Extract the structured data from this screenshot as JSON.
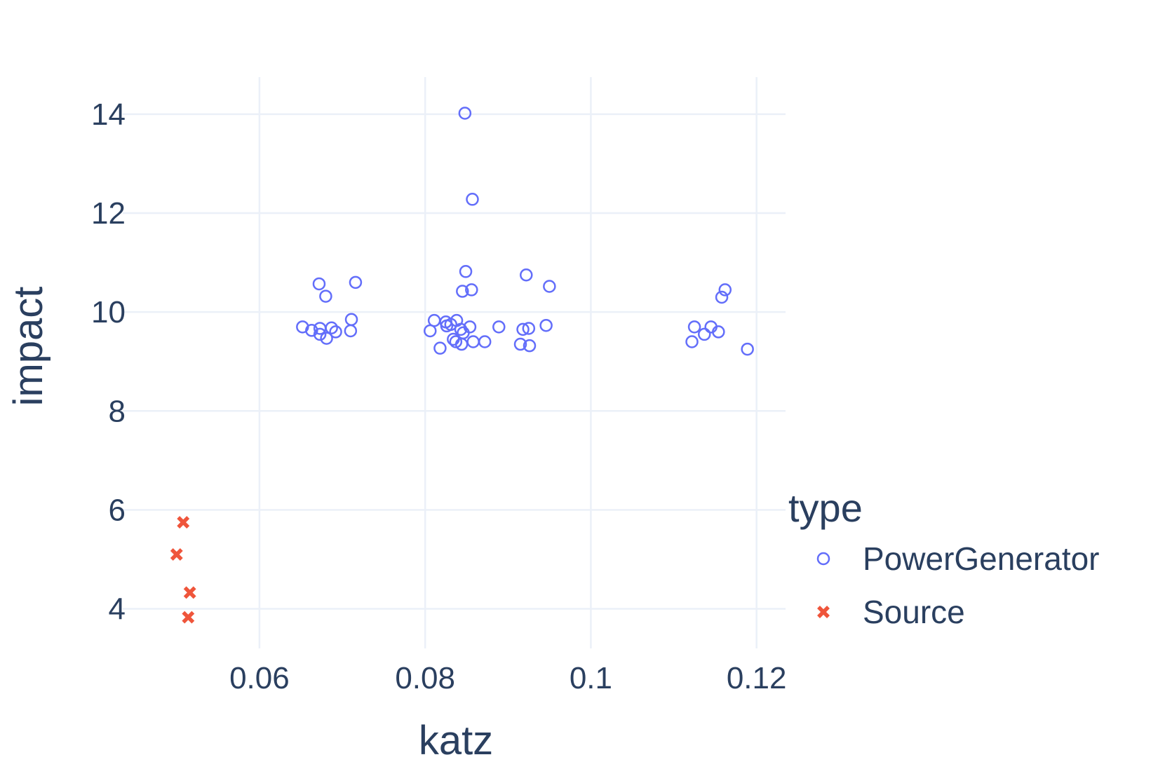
{
  "chart_data": {
    "type": "scatter",
    "title": "",
    "xlabel": "katz",
    "ylabel": "impact",
    "xlim": [
      0.0435,
      0.1235
    ],
    "ylim": [
      3.2,
      14.75
    ],
    "xticks": [
      0.06,
      0.08,
      0.1,
      0.12
    ],
    "xtick_labels": [
      "0.06",
      "0.08",
      "0.1",
      "0.12"
    ],
    "yticks": [
      4,
      6,
      8,
      10,
      12,
      14
    ],
    "ytick_labels": [
      "4",
      "6",
      "8",
      "10",
      "12",
      "14"
    ],
    "grid": true,
    "legend": {
      "title": "type",
      "placement": "right"
    },
    "series": [
      {
        "name": "PowerGenerator",
        "marker": "circle-open",
        "color": "#636efa",
        "points": [
          [
            0.0652,
            9.7
          ],
          [
            0.0663,
            9.63
          ],
          [
            0.0672,
            10.57
          ],
          [
            0.0673,
            9.67
          ],
          [
            0.0673,
            9.55
          ],
          [
            0.068,
            10.32
          ],
          [
            0.0681,
            9.47
          ],
          [
            0.0687,
            9.68
          ],
          [
            0.0692,
            9.6
          ],
          [
            0.071,
            9.62
          ],
          [
            0.0711,
            9.85
          ],
          [
            0.0716,
            10.6
          ],
          [
            0.0806,
            9.62
          ],
          [
            0.0811,
            9.83
          ],
          [
            0.0818,
            9.27
          ],
          [
            0.0825,
            9.8
          ],
          [
            0.0826,
            9.72
          ],
          [
            0.0831,
            9.75
          ],
          [
            0.0834,
            9.45
          ],
          [
            0.0837,
            9.4
          ],
          [
            0.0838,
            9.83
          ],
          [
            0.0843,
            9.65
          ],
          [
            0.0844,
            9.35
          ],
          [
            0.0845,
            10.42
          ],
          [
            0.0846,
            9.58
          ],
          [
            0.0848,
            14.02
          ],
          [
            0.0849,
            10.82
          ],
          [
            0.0854,
            9.7
          ],
          [
            0.0856,
            10.45
          ],
          [
            0.0857,
            12.28
          ],
          [
            0.0858,
            9.4
          ],
          [
            0.0872,
            9.4
          ],
          [
            0.0889,
            9.7
          ],
          [
            0.0915,
            9.35
          ],
          [
            0.0918,
            9.65
          ],
          [
            0.0922,
            10.75
          ],
          [
            0.0925,
            9.67
          ],
          [
            0.0926,
            9.32
          ],
          [
            0.0946,
            9.73
          ],
          [
            0.095,
            10.52
          ],
          [
            0.1122,
            9.4
          ],
          [
            0.1125,
            9.7
          ],
          [
            0.1137,
            9.55
          ],
          [
            0.1145,
            9.7
          ],
          [
            0.1154,
            9.6
          ],
          [
            0.1158,
            10.3
          ],
          [
            0.1162,
            10.45
          ],
          [
            0.1189,
            9.25
          ]
        ]
      },
      {
        "name": "Source",
        "marker": "x",
        "color": "#ef553b",
        "points": [
          [
            0.0508,
            5.75
          ],
          [
            0.05,
            5.1
          ],
          [
            0.0516,
            4.33
          ],
          [
            0.0514,
            3.83
          ]
        ]
      }
    ]
  }
}
